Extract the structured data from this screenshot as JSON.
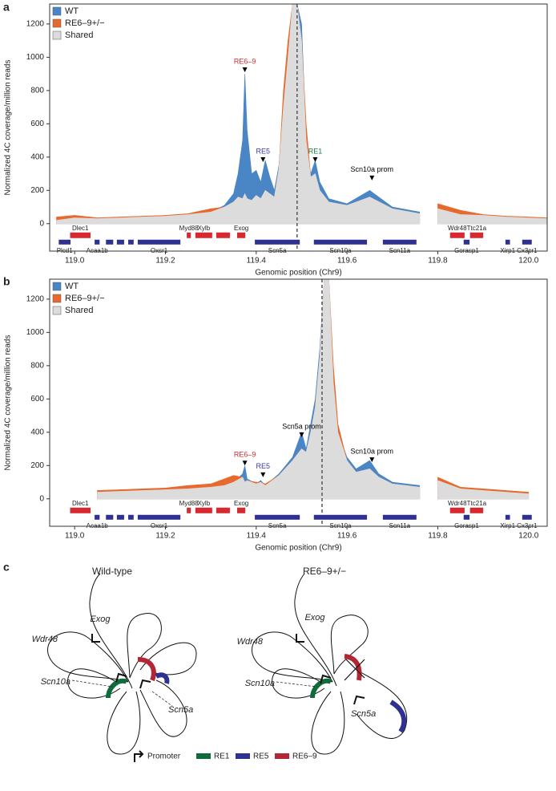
{
  "chart_data": [
    {
      "type": "area",
      "panel": "a",
      "ylabel": "Normalized 4C coverage/million reads",
      "xlabel": "Genomic position (Chr9)",
      "xlim": [
        118.945,
        120.041
      ],
      "ylim": [
        -165,
        1320
      ],
      "yticks": [
        0,
        200,
        400,
        600,
        800,
        1000,
        1200
      ],
      "xticks": [
        {
          "value": 119,
          "label": "119.0"
        },
        {
          "value": 119.2,
          "label": "119.2"
        },
        {
          "value": 119.4,
          "label": "119.4"
        },
        {
          "value": 119.6,
          "label": "119.6"
        },
        {
          "value": 119.8,
          "label": "119.8"
        },
        {
          "value": 120,
          "label": "120.0"
        }
      ],
      "viewpoint": 119.49,
      "legend": "top-left",
      "x": [
        118.96,
        119.0,
        119.05,
        119.1,
        119.15,
        119.2,
        119.25,
        119.3,
        119.33,
        119.35,
        119.36,
        119.37,
        119.375,
        119.38,
        119.39,
        119.4,
        119.41,
        119.42,
        119.43,
        119.44,
        119.45,
        119.46,
        119.47,
        119.48,
        119.49,
        119.5,
        119.51,
        119.52,
        119.53,
        119.54,
        119.56,
        119.6,
        119.65,
        119.7,
        119.76,
        119.78,
        119.8,
        119.85,
        119.9,
        119.95,
        120.0,
        120.04
      ],
      "series": [
        {
          "name": "WT",
          "color": "#4a86c5",
          "values": [
            20,
            35,
            30,
            35,
            40,
            45,
            55,
            70,
            110,
            180,
            300,
            500,
            900,
            560,
            300,
            320,
            250,
            380,
            280,
            200,
            350,
            700,
            1000,
            1320,
            1320,
            1200,
            500,
            300,
            380,
            250,
            150,
            120,
            200,
            100,
            70,
            null,
            90,
            55,
            50,
            40,
            35,
            30
          ]
        },
        {
          "name": "RE6–9+/−",
          "color": "#e8692d",
          "values": [
            40,
            50,
            35,
            40,
            45,
            50,
            60,
            90,
            100,
            130,
            160,
            150,
            180,
            150,
            140,
            170,
            150,
            200,
            180,
            160,
            330,
            800,
            1100,
            1320,
            1320,
            1100,
            600,
            280,
            300,
            200,
            130,
            110,
            160,
            90,
            60,
            null,
            120,
            80,
            55,
            45,
            40,
            35
          ]
        },
        {
          "name": "Shared",
          "color": "#dcdcdc",
          "values": [
            20,
            35,
            30,
            35,
            40,
            45,
            55,
            70,
            100,
            130,
            160,
            150,
            180,
            150,
            140,
            170,
            150,
            200,
            180,
            160,
            330,
            700,
            1000,
            1320,
            1320,
            1100,
            500,
            280,
            300,
            200,
            130,
            110,
            160,
            90,
            60,
            null,
            90,
            55,
            50,
            40,
            35,
            30
          ]
        }
      ],
      "annotations": [
        {
          "text": "RE6–9",
          "x": 119.375,
          "y": 910,
          "color": "#d7292f"
        },
        {
          "text": "RE5",
          "x": 119.415,
          "y": 370,
          "color": "#3c3c9a"
        },
        {
          "text": "RE1",
          "x": 119.53,
          "y": 370,
          "color": "#1f7a4a"
        },
        {
          "text": "Scn10a prom",
          "x": 119.655,
          "y": 260,
          "color": "#000000"
        }
      ],
      "genes": [
        {
          "name": "Dlec1",
          "start": 118.99,
          "end": 119.035,
          "row": "top",
          "color": "#d7292f"
        },
        {
          "name": "Myd88",
          "start": 119.247,
          "end": 119.256,
          "row": "top",
          "color": "#d7292f"
        },
        {
          "name": "Xylb",
          "start": 119.266,
          "end": 119.303,
          "row": "top",
          "color": "#d7292f"
        },
        {
          "name": null,
          "start": 119.312,
          "end": 119.342,
          "row": "top",
          "color": "#d7292f"
        },
        {
          "name": "Exog",
          "start": 119.358,
          "end": 119.376,
          "row": "top",
          "color": "#d7292f"
        },
        {
          "name": "Wdr48",
          "start": 119.827,
          "end": 119.859,
          "row": "top",
          "color": "#d7292f"
        },
        {
          "name": "Ttc21a",
          "start": 119.871,
          "end": 119.9,
          "row": "top",
          "color": "#d7292f"
        },
        {
          "name": "Plcd1",
          "start": 118.965,
          "end": 118.991,
          "row": "bottom",
          "color": "#2e3192"
        },
        {
          "name": "Acaa1b",
          "start": 119.044,
          "end": 119.055,
          "row": "bottom",
          "color": "#2e3192"
        },
        {
          "name": null,
          "start": 119.069,
          "end": 119.085,
          "row": "bottom",
          "color": "#2e3192"
        },
        {
          "name": null,
          "start": 119.093,
          "end": 119.109,
          "row": "bottom",
          "color": "#2e3192"
        },
        {
          "name": null,
          "start": 119.118,
          "end": 119.13,
          "row": "bottom",
          "color": "#2e3192"
        },
        {
          "name": "Oxsr1",
          "start": 119.139,
          "end": 119.233,
          "row": "bottom",
          "color": "#2e3192"
        },
        {
          "name": "Scn5a",
          "start": 119.397,
          "end": 119.496,
          "row": "bottom",
          "color": "#2e3192"
        },
        {
          "name": "Scn10a",
          "start": 119.527,
          "end": 119.644,
          "row": "bottom",
          "color": "#2e3192"
        },
        {
          "name": "Scn11a",
          "start": 119.679,
          "end": 119.753,
          "row": "bottom",
          "color": "#2e3192"
        },
        {
          "name": "Gorasp1",
          "start": 119.857,
          "end": 119.87,
          "row": "bottom",
          "color": "#2e3192"
        },
        {
          "name": "Xirp1",
          "start": 119.949,
          "end": 119.959,
          "row": "bottom",
          "color": "#2e3192"
        },
        {
          "name": "Cx3cr1",
          "start": 119.986,
          "end": 120.007,
          "row": "bottom",
          "color": "#2e3192"
        }
      ]
    },
    {
      "type": "area",
      "panel": "b",
      "ylabel": "Normalized 4C coverage/million reads",
      "xlabel": "Genomic position (Chr9)",
      "xlim": [
        118.945,
        120.041
      ],
      "ylim": [
        -165,
        1320
      ],
      "yticks": [
        0,
        200,
        400,
        600,
        800,
        1000,
        1200
      ],
      "xticks": [
        {
          "value": 119,
          "label": "119.0"
        },
        {
          "value": 119.2,
          "label": "119.2"
        },
        {
          "value": 119.4,
          "label": "119.4"
        },
        {
          "value": 119.6,
          "label": "119.6"
        },
        {
          "value": 119.8,
          "label": "119.8"
        },
        {
          "value": 120,
          "label": "120.0"
        }
      ],
      "viewpoint": 119.545,
      "legend": "top-left",
      "x": [
        119.05,
        119.1,
        119.15,
        119.2,
        119.25,
        119.3,
        119.33,
        119.35,
        119.37,
        119.375,
        119.38,
        119.4,
        119.41,
        119.42,
        119.45,
        119.48,
        119.5,
        119.51,
        119.52,
        119.53,
        119.54,
        119.55,
        119.56,
        119.57,
        119.58,
        119.6,
        119.62,
        119.65,
        119.67,
        119.7,
        119.76,
        119.78,
        119.8,
        119.85,
        119.9,
        119.95,
        120.0
      ],
      "series": [
        {
          "name": "WT",
          "color": "#4a86c5",
          "values": [
            40,
            45,
            50,
            55,
            60,
            70,
            80,
            100,
            150,
            200,
            120,
            90,
            110,
            80,
            150,
            250,
            400,
            300,
            450,
            600,
            900,
            1320,
            1320,
            700,
            400,
            250,
            180,
            230,
            150,
            100,
            80,
            null,
            110,
            60,
            50,
            40,
            30
          ]
        },
        {
          "name": "RE6–9+/−",
          "color": "#e8692d",
          "values": [
            50,
            55,
            60,
            65,
            80,
            90,
            120,
            140,
            130,
            100,
            110,
            100,
            100,
            90,
            140,
            230,
            300,
            280,
            400,
            550,
            850,
            1320,
            1320,
            800,
            450,
            230,
            160,
            180,
            130,
            90,
            70,
            null,
            130,
            70,
            60,
            50,
            40
          ]
        },
        {
          "name": "Shared",
          "color": "#dcdcdc",
          "values": [
            40,
            45,
            50,
            55,
            60,
            70,
            80,
            100,
            130,
            100,
            110,
            90,
            100,
            80,
            140,
            230,
            300,
            280,
            400,
            550,
            850,
            1320,
            1320,
            700,
            400,
            230,
            160,
            180,
            130,
            90,
            70,
            null,
            110,
            60,
            50,
            40,
            30
          ]
        }
      ],
      "annotations": [
        {
          "text": "RE6–9",
          "x": 119.375,
          "y": 200,
          "color": "#d7292f"
        },
        {
          "text": "RE5",
          "x": 119.415,
          "y": 130,
          "color": "#3c3c9a"
        },
        {
          "text": "Scn5a prom",
          "x": 119.5,
          "y": 370,
          "color": "#000000"
        },
        {
          "text": "Scn10a prom",
          "x": 119.655,
          "y": 220,
          "color": "#000000"
        }
      ],
      "genes": [
        {
          "name": "Dlec1",
          "start": 118.99,
          "end": 119.035,
          "row": "top",
          "color": "#d7292f"
        },
        {
          "name": "Myd88",
          "start": 119.247,
          "end": 119.256,
          "row": "top",
          "color": "#d7292f"
        },
        {
          "name": "Xylb",
          "start": 119.266,
          "end": 119.303,
          "row": "top",
          "color": "#d7292f"
        },
        {
          "name": null,
          "start": 119.312,
          "end": 119.342,
          "row": "top",
          "color": "#d7292f"
        },
        {
          "name": "Exog",
          "start": 119.358,
          "end": 119.376,
          "row": "top",
          "color": "#d7292f"
        },
        {
          "name": "Wdr48",
          "start": 119.827,
          "end": 119.859,
          "row": "top",
          "color": "#d7292f"
        },
        {
          "name": "Ttc21a",
          "start": 119.871,
          "end": 119.9,
          "row": "top",
          "color": "#d7292f"
        },
        {
          "name": "Acaa1b",
          "start": 119.044,
          "end": 119.055,
          "row": "bottom",
          "color": "#2e3192"
        },
        {
          "name": null,
          "start": 119.069,
          "end": 119.085,
          "row": "bottom",
          "color": "#2e3192"
        },
        {
          "name": null,
          "start": 119.093,
          "end": 119.109,
          "row": "bottom",
          "color": "#2e3192"
        },
        {
          "name": null,
          "start": 119.118,
          "end": 119.13,
          "row": "bottom",
          "color": "#2e3192"
        },
        {
          "name": "Oxsr1",
          "start": 119.139,
          "end": 119.233,
          "row": "bottom",
          "color": "#2e3192"
        },
        {
          "name": "Scn5a",
          "start": 119.397,
          "end": 119.496,
          "row": "bottom",
          "color": "#2e3192"
        },
        {
          "name": "Scn10a",
          "start": 119.527,
          "end": 119.644,
          "row": "bottom",
          "color": "#2e3192"
        },
        {
          "name": "Scn11a",
          "start": 119.679,
          "end": 119.753,
          "row": "bottom",
          "color": "#2e3192"
        },
        {
          "name": "Gorasp1",
          "start": 119.857,
          "end": 119.87,
          "row": "bottom",
          "color": "#2e3192"
        },
        {
          "name": "Xirp1",
          "start": 119.949,
          "end": 119.959,
          "row": "bottom",
          "color": "#2e3192"
        },
        {
          "name": "Cx3cr1",
          "start": 119.986,
          "end": 120.007,
          "row": "bottom",
          "color": "#2e3192"
        }
      ]
    }
  ],
  "diagram": {
    "panel": "c",
    "wild_type": {
      "title": "Wild-type",
      "labels": [
        "Wdr48",
        "Exog",
        "Scn10a",
        "Scn5a"
      ]
    },
    "mutant": {
      "title": "RE6–9+/−",
      "labels": [
        "Wdr48",
        "Exog",
        "Scn10a",
        "Scn5a"
      ]
    },
    "legend": [
      "Promoter",
      "RE1",
      "RE5",
      "RE6–9"
    ]
  }
}
